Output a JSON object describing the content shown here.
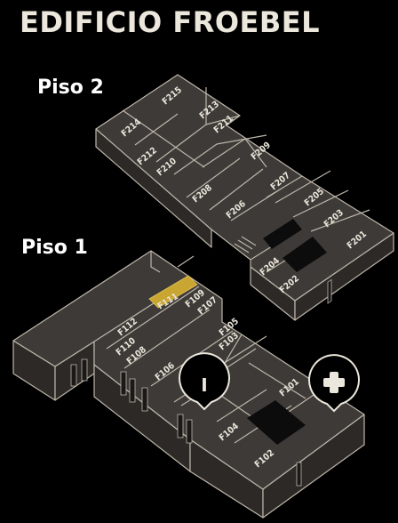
{
  "title": "EDIFICIO FROEBEL",
  "floors": [
    {
      "label": "Piso 2",
      "rooms": [
        "F215",
        "F214",
        "F213",
        "F211",
        "F212",
        "F210",
        "F209",
        "F207",
        "F208",
        "F206",
        "F205",
        "F203",
        "F201",
        "F204",
        "F202"
      ]
    },
    {
      "label": "Piso 1",
      "rooms": [
        "F111",
        "F109",
        "F107",
        "F112",
        "F110",
        "F108",
        "F105",
        "F103",
        "F106",
        "F101",
        "F104",
        "F102"
      ]
    }
  ],
  "highlighted_room": "F111",
  "markers": [
    {
      "icon": "info-icon",
      "glyph": "I"
    },
    {
      "icon": "first-aid-icon",
      "glyph": "+"
    }
  ],
  "colors": {
    "background": "#000000",
    "floor": "#3e3a37",
    "outline": "#bdb6aa",
    "highlight": "#c9a531",
    "text": "#ece7dc"
  }
}
